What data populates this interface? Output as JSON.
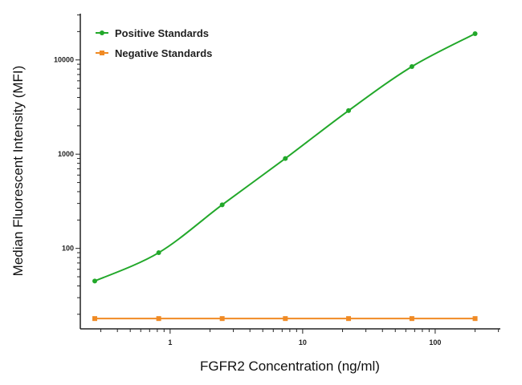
{
  "chart_data": {
    "type": "line",
    "title": "",
    "xlabel": "FGFR2 Concentration (ng/ml)",
    "ylabel": "Median Fluorescent Intensity (MFI)",
    "x_scale": "log",
    "y_scale": "log",
    "xlim": [
      0.21,
      310
    ],
    "ylim": [
      14,
      31000
    ],
    "x_ticks": [
      1,
      10,
      100
    ],
    "x_tick_labels": [
      "1",
      "10",
      "100"
    ],
    "y_ticks": [
      100,
      1000,
      10000
    ],
    "y_tick_labels": [
      "100",
      "1000",
      "10000"
    ],
    "grid": false,
    "legend_position": "top-left",
    "x": [
      0.27,
      0.82,
      2.47,
      7.4,
      22.2,
      66.7,
      200
    ],
    "series": [
      {
        "name": "Positive Standards",
        "color": "#22a82a",
        "marker": "circle",
        "values": [
          45,
          90,
          290,
          900,
          2900,
          8500,
          19000
        ]
      },
      {
        "name": "Negative Standards",
        "color": "#f08a24",
        "marker": "square",
        "values": [
          18,
          18,
          18,
          18,
          18,
          18,
          18
        ]
      }
    ]
  }
}
